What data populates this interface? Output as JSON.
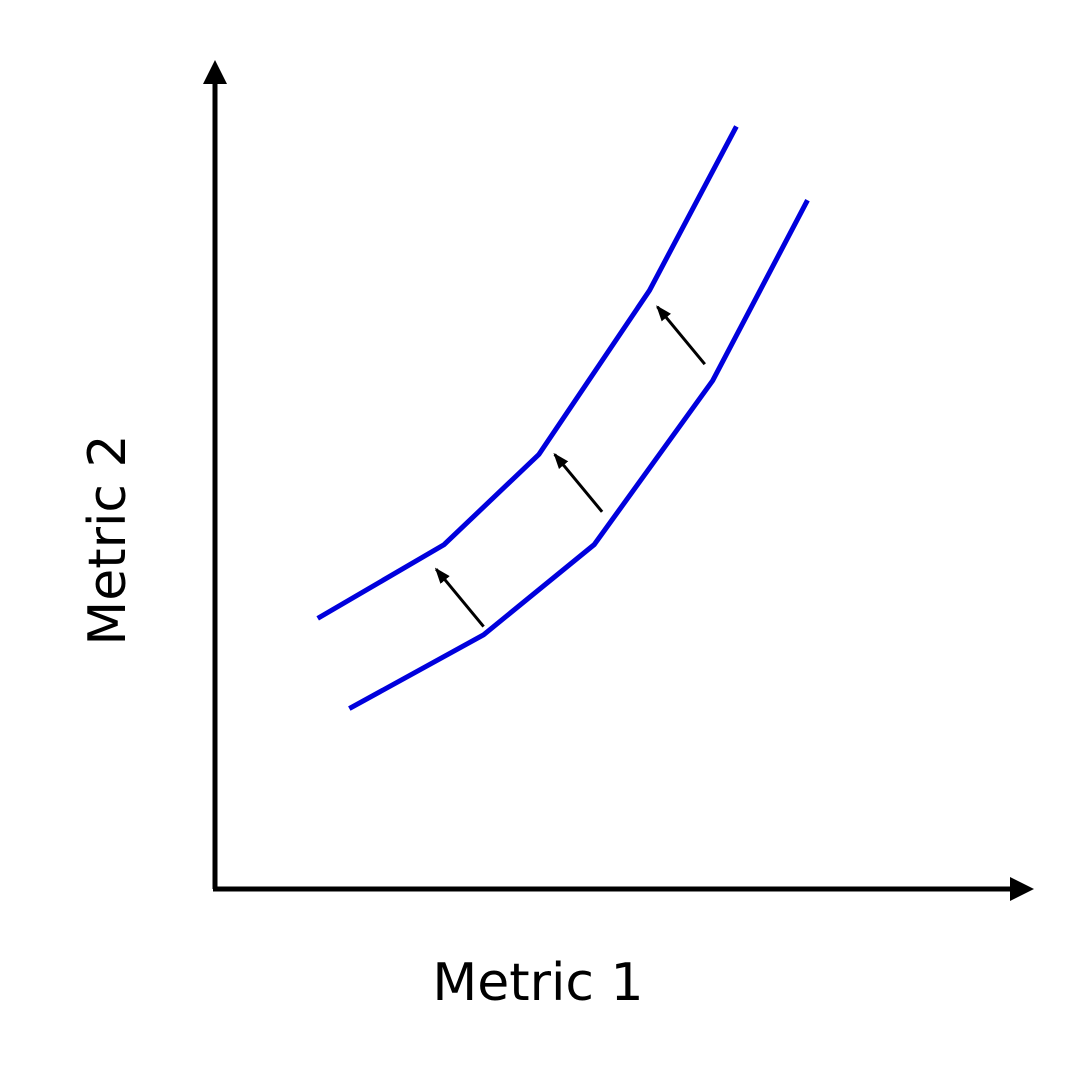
{
  "axes": {
    "x_label": "Metric 1",
    "y_label": "Metric 2"
  },
  "curves": [
    {
      "role": "upper-curve",
      "color": "#0000dd",
      "points": [
        [
          0.13,
          0.33
        ],
        [
          0.29,
          0.42
        ],
        [
          0.41,
          0.53
        ],
        [
          0.55,
          0.73
        ],
        [
          0.66,
          0.93
        ]
      ]
    },
    {
      "role": "lower-curve",
      "color": "#0000dd",
      "points": [
        [
          0.17,
          0.22
        ],
        [
          0.34,
          0.31
        ],
        [
          0.48,
          0.42
        ],
        [
          0.63,
          0.62
        ],
        [
          0.75,
          0.84
        ]
      ]
    }
  ],
  "shift_arrows": [
    {
      "from": [
        0.34,
        0.32
      ],
      "to": [
        0.28,
        0.39
      ]
    },
    {
      "from": [
        0.49,
        0.46
      ],
      "to": [
        0.43,
        0.53
      ]
    },
    {
      "from": [
        0.62,
        0.64
      ],
      "to": [
        0.56,
        0.71
      ]
    }
  ],
  "colors": {
    "axis": "#000000",
    "arrow": "#000000",
    "curve": "#0000dd"
  }
}
